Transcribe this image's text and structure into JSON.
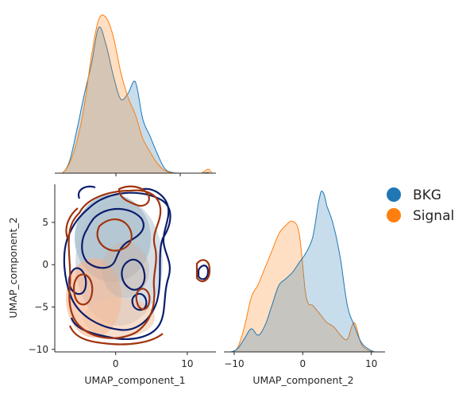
{
  "chart_data": {
    "type": "pairplot-kde",
    "legend": {
      "placement": "right",
      "entries": [
        {
          "label": "BKG",
          "color": "#1f77b4"
        },
        {
          "label": "Signal",
          "color": "#ff7f0e"
        }
      ]
    },
    "panels": [
      {
        "id": "umap1-marginal",
        "type": "area",
        "x_range": [
          -8,
          14
        ],
        "series": [
          {
            "name": "BKG",
            "color": "#1f77b4",
            "fill": "#1f77b4",
            "x": [
              -7,
              -6,
              -5,
              -4,
              -3,
              -2,
              -1,
              0,
              1,
              2,
              3,
              4,
              5,
              6,
              7,
              8,
              9,
              10,
              11,
              12,
              13
            ],
            "density": [
              0.0,
              0.03,
              0.11,
              0.2,
              0.28,
              0.375,
              0.33,
              0.25,
              0.19,
              0.205,
              0.235,
              0.14,
              0.095,
              0.05,
              0.012,
              0.002,
              0.0,
              0.0,
              0.0,
              0.0,
              0.002
            ]
          },
          {
            "name": "Signal",
            "color": "#ff7f0e",
            "fill": "#ff7f0e",
            "x": [
              -7,
              -6,
              -5,
              -4,
              -3,
              -2,
              -1,
              0,
              1,
              2,
              3,
              4,
              5,
              6,
              7,
              8,
              9,
              10,
              11,
              12,
              12.5,
              13,
              13.5
            ],
            "density": [
              0.0,
              0.025,
              0.08,
              0.17,
              0.3,
              0.395,
              0.4,
              0.35,
              0.26,
              0.195,
              0.15,
              0.09,
              0.055,
              0.025,
              0.007,
              0.001,
              0.0,
              0.0,
              0.0,
              0.0,
              0.006,
              0.01,
              0.0
            ]
          }
        ]
      },
      {
        "id": "umap1-vs-umap2",
        "type": "kde-contour",
        "xlabel": "UMAP_component_1",
        "ylabel": "UMAP_component_2",
        "xlim": [
          -8.5,
          14
        ],
        "ylim": [
          -10.3,
          9.5
        ],
        "xticks": [
          "0",
          "10"
        ],
        "xtick_values": [
          0,
          10
        ],
        "yticks": [
          "5",
          "0",
          "−5",
          "−10"
        ],
        "ytick_values": [
          5,
          0,
          -5,
          -10
        ]
      },
      {
        "id": "umap2-marginal",
        "type": "area",
        "xlabel": "UMAP_component_2",
        "xlim": [
          -11.5,
          12
        ],
        "xticks": [
          "−10",
          "0",
          "10"
        ],
        "xtick_values": [
          -10,
          0,
          10
        ],
        "series": [
          {
            "name": "BKG",
            "color": "#1f77b4",
            "fill": "#1f77b4",
            "x": [
              -10.5,
              -9.5,
              -8.5,
              -7.5,
              -6.5,
              -5.5,
              -4.5,
              -3.5,
              -2.5,
              -1.5,
              -0.5,
              0.5,
              1.5,
              2.5,
              3.0,
              3.5,
              4.5,
              5.5,
              6.5,
              7.5,
              8.5,
              9.5,
              10.5
            ],
            "density": [
              0.0,
              0.005,
              0.02,
              0.035,
              0.025,
              0.04,
              0.07,
              0.1,
              0.11,
              0.12,
              0.135,
              0.15,
              0.175,
              0.235,
              0.24,
              0.22,
              0.19,
              0.14,
              0.07,
              0.04,
              0.015,
              0.005,
              0.0
            ]
          },
          {
            "name": "Signal",
            "color": "#ff7f0e",
            "fill": "#ff7f0e",
            "x": [
              -10.5,
              -9.5,
              -8.5,
              -7.5,
              -6.5,
              -5.5,
              -4.5,
              -3.5,
              -2.5,
              -1.5,
              -0.5,
              0.5,
              1.5,
              2.5,
              3.5,
              4.5,
              5.5,
              6.5,
              7.5,
              8.5,
              9.5,
              10.5
            ],
            "density": [
              0.0,
              0.005,
              0.03,
              0.065,
              0.08,
              0.1,
              0.12,
              0.14,
              0.15,
              0.155,
              0.14,
              0.065,
              0.055,
              0.045,
              0.035,
              0.03,
              0.02,
              0.015,
              0.035,
              0.01,
              0.002,
              0.0
            ]
          }
        ]
      }
    ]
  }
}
